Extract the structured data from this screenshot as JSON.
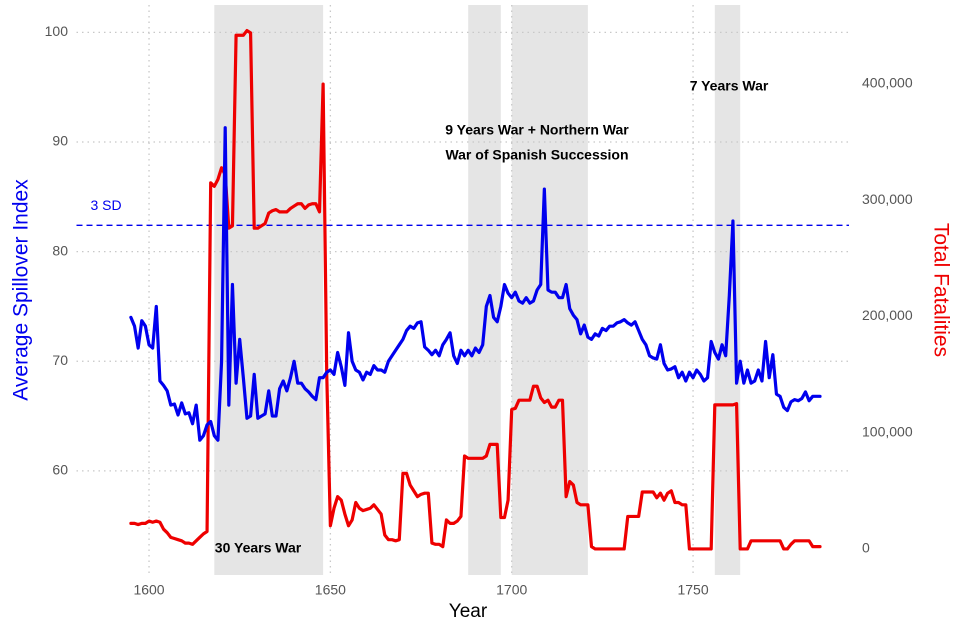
{
  "chart_data": {
    "type": "line",
    "x_label": "Year",
    "y_label": "Average Spillover Index",
    "y2_label": "Total Fatalities",
    "xlim": [
      1580,
      1793
    ],
    "xticks": [
      1600,
      1650,
      1700,
      1750
    ],
    "ylim": [
      50.5,
      102.5
    ],
    "yticks": [
      60,
      70,
      80,
      90,
      100
    ],
    "y2lim": [
      -22400,
      468000
    ],
    "y2ticks": [
      0,
      {
        "value": 100000,
        "label": "100,000"
      },
      {
        "value": 200000,
        "label": "200,000"
      },
      {
        "value": 300000,
        "label": "300,000"
      },
      {
        "value": 400000,
        "label": "400,000"
      }
    ],
    "grid": true,
    "shaded_regions": [
      [
        1618,
        1648
      ],
      [
        1688,
        1697
      ],
      [
        1700,
        1721
      ],
      [
        1756,
        1763
      ]
    ],
    "hline": {
      "value": 82.4,
      "label": "3 SD",
      "color": "#0000ee"
    },
    "annotations": [
      "30 Years War",
      "9 Years War + Northern War",
      "War of Spanish Succession",
      "7 Years War"
    ],
    "x": [
      1595,
      1596,
      1597,
      1598,
      1599,
      1600,
      1601,
      1602,
      1603,
      1604,
      1605,
      1606,
      1607,
      1608,
      1609,
      1610,
      1611,
      1612,
      1613,
      1614,
      1615,
      1616,
      1617,
      1618,
      1619,
      1620,
      1621,
      1622,
      1623,
      1624,
      1625,
      1626,
      1627,
      1628,
      1629,
      1630,
      1631,
      1632,
      1633,
      1634,
      1635,
      1636,
      1637,
      1638,
      1639,
      1640,
      1641,
      1642,
      1643,
      1644,
      1645,
      1646,
      1647,
      1648,
      1649,
      1650,
      1651,
      1652,
      1653,
      1654,
      1655,
      1656,
      1657,
      1658,
      1659,
      1660,
      1661,
      1662,
      1663,
      1664,
      1665,
      1666,
      1667,
      1668,
      1669,
      1670,
      1671,
      1672,
      1673,
      1674,
      1675,
      1676,
      1677,
      1678,
      1679,
      1680,
      1681,
      1682,
      1683,
      1684,
      1685,
      1686,
      1687,
      1688,
      1689,
      1690,
      1691,
      1692,
      1693,
      1694,
      1695,
      1696,
      1697,
      1698,
      1699,
      1700,
      1701,
      1702,
      1703,
      1704,
      1705,
      1706,
      1707,
      1708,
      1709,
      1710,
      1711,
      1712,
      1713,
      1714,
      1715,
      1716,
      1717,
      1718,
      1719,
      1720,
      1721,
      1722,
      1723,
      1724,
      1725,
      1726,
      1727,
      1728,
      1729,
      1730,
      1731,
      1732,
      1733,
      1734,
      1735,
      1736,
      1737,
      1738,
      1739,
      1740,
      1741,
      1742,
      1743,
      1744,
      1745,
      1746,
      1747,
      1748,
      1749,
      1750,
      1751,
      1752,
      1753,
      1754,
      1755,
      1756,
      1757,
      1758,
      1759,
      1760,
      1761,
      1762,
      1763,
      1764,
      1765,
      1766,
      1767,
      1768,
      1769,
      1770,
      1771,
      1772,
      1773,
      1774,
      1775,
      1776,
      1777,
      1778,
      1779,
      1780,
      1781,
      1782,
      1783,
      1784,
      1785
    ],
    "series": [
      {
        "name": "Average Spillover Index",
        "color": "#0000ee",
        "axis": "y",
        "values": [
          74,
          73.2,
          71.2,
          73.7,
          73.2,
          71.5,
          71.2,
          75,
          68.2,
          67.8,
          67.3,
          66,
          66.1,
          65.1,
          66.2,
          65.2,
          65.3,
          64.3,
          66,
          62.8,
          63.2,
          64.2,
          64.5,
          63.2,
          62.8,
          70,
          91.3,
          66,
          77,
          68,
          72,
          68.5,
          64.8,
          65,
          68.8,
          64.8,
          65,
          65.2,
          67.3,
          65,
          65,
          67.5,
          68.2,
          67.3,
          68.5,
          70,
          68,
          68,
          67.5,
          67.2,
          66.8,
          66.5,
          68.5,
          68.5,
          69,
          69.2,
          68.8,
          70.8,
          69.5,
          67.8,
          72.6,
          70,
          69.2,
          69,
          68.3,
          69,
          68.8,
          69.6,
          69.2,
          69.2,
          69,
          70,
          70.5,
          71,
          71.5,
          72,
          72.8,
          73.2,
          73,
          73.5,
          73.6,
          71.3,
          71,
          70.6,
          71,
          70.5,
          71.5,
          72,
          72.6,
          70.5,
          69.8,
          71,
          70.5,
          71,
          70.5,
          71.2,
          70.8,
          71.5,
          75,
          76,
          74,
          73.6,
          75,
          77,
          76.2,
          75.8,
          76.3,
          75.5,
          75.3,
          75.8,
          75.3,
          75.5,
          76.5,
          77,
          85.7,
          76.5,
          76.3,
          76.3,
          75.8,
          75.8,
          77,
          74.8,
          74.2,
          73.8,
          72.5,
          73.3,
          72.2,
          72,
          72.5,
          72.3,
          73,
          72.8,
          73.2,
          73.2,
          73.5,
          73.6,
          73.8,
          73.5,
          73.3,
          73.6,
          72.8,
          72,
          71.5,
          70.5,
          70.3,
          70.2,
          71.5,
          69.8,
          69.2,
          69.3,
          69.5,
          68.5,
          69,
          68.2,
          69,
          68.5,
          69.2,
          68.8,
          68.2,
          68.5,
          71.8,
          70.8,
          70.2,
          71.5,
          70.5,
          76,
          82.8,
          68,
          70,
          68,
          69.2,
          68,
          68.2,
          69.2,
          68.2,
          71.8,
          68.5,
          70.6,
          67,
          66.8,
          65.8,
          65.5,
          66.3,
          66.5,
          66.4,
          66.6,
          67.2,
          66.4,
          66.8,
          66.8,
          66.8
        ]
      },
      {
        "name": "Total Fatalities",
        "color": "#ee0000",
        "axis": "y2",
        "values": [
          22000,
          22000,
          21000,
          22000,
          22000,
          24000,
          23000,
          24000,
          23000,
          17000,
          14000,
          10000,
          9000,
          8000,
          7000,
          5000,
          5000,
          4000,
          7000,
          10000,
          13000,
          15000,
          315000,
          312000,
          318000,
          328000,
          322000,
          276000,
          278000,
          442000,
          442000,
          442000,
          446000,
          444000,
          276000,
          276000,
          278000,
          280000,
          289000,
          291000,
          292000,
          290000,
          290000,
          290000,
          293000,
          295000,
          297000,
          297000,
          293000,
          296000,
          297000,
          297000,
          290000,
          400000,
          150000,
          20000,
          35000,
          45000,
          42000,
          30000,
          20000,
          25000,
          40000,
          35000,
          33000,
          34000,
          35000,
          38000,
          34000,
          30000,
          12000,
          8000,
          8000,
          7000,
          8000,
          65000,
          65000,
          55000,
          50000,
          45000,
          47000,
          48000,
          48000,
          5000,
          4000,
          4000,
          2000,
          25000,
          22000,
          22000,
          24000,
          28000,
          80000,
          78000,
          78000,
          78000,
          78000,
          78000,
          80000,
          90000,
          90000,
          90000,
          27000,
          27000,
          42000,
          120000,
          121000,
          128000,
          128000,
          128000,
          128000,
          140000,
          140000,
          130000,
          126000,
          128000,
          122000,
          122000,
          128000,
          128000,
          45000,
          58000,
          55000,
          40000,
          38000,
          38000,
          38000,
          2000,
          0,
          0,
          0,
          0,
          0,
          0,
          0,
          0,
          0,
          28000,
          28000,
          28000,
          28000,
          49000,
          49000,
          49000,
          49000,
          44000,
          48000,
          42000,
          48000,
          50000,
          40000,
          40000,
          38000,
          38000,
          0,
          0,
          0,
          0,
          0,
          0,
          0,
          124000,
          124000,
          124000,
          124000,
          124000,
          124000,
          125000,
          0,
          0,
          0,
          7000,
          7000,
          7000,
          7000,
          7000,
          7000,
          7000,
          7000,
          7000,
          0,
          0,
          4000,
          7000,
          7000,
          7000,
          7000,
          7000,
          2000,
          2000,
          2000
        ]
      }
    ]
  }
}
